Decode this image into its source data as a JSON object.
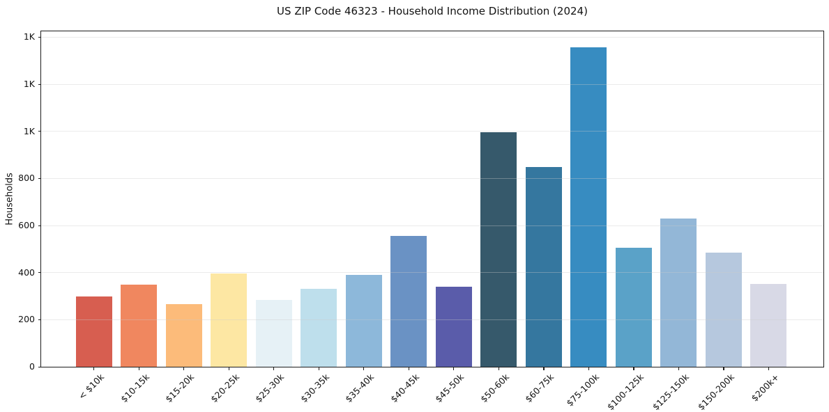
{
  "chart_data": {
    "type": "bar",
    "title": "US ZIP Code 46323 - Household Income Distribution (2024)",
    "xlabel": "",
    "ylabel": "Households",
    "categories": [
      "< $10k",
      "$10-15k",
      "$15-20k",
      "$20-25k",
      "$25-30k",
      "$30-35k",
      "$35-40k",
      "$40-45k",
      "$45-50k",
      "$50-60k",
      "$60-75k",
      "$75-100k",
      "$100-125k",
      "$125-150k",
      "$150-200k",
      "$200k+"
    ],
    "values": [
      300,
      350,
      267,
      395,
      284,
      332,
      390,
      555,
      340,
      997,
      848,
      1356,
      506,
      629,
      484,
      351
    ],
    "bar_colors": [
      "#d75e50",
      "#f0875f",
      "#fcbb7a",
      "#fde7a3",
      "#e6f1f6",
      "#bedfec",
      "#8db8da",
      "#6a92c4",
      "#5a5caa",
      "#36596b",
      "#35779f",
      "#378cc1",
      "#5aa2c8",
      "#93b7d7",
      "#b6c8de",
      "#d8d9e6"
    ],
    "y_tick_values": [
      0,
      200,
      400,
      600,
      800,
      1000,
      1200,
      1400
    ],
    "y_tick_labels": [
      "0",
      "200",
      "400",
      "600",
      "800",
      "1K",
      "1K",
      "1K"
    ],
    "ylim": [
      0,
      1425
    ],
    "grid": "horizontal",
    "grid_over_bars": true,
    "legend": "none",
    "colors": {
      "background": "#ffffff",
      "gridline": "#ececec",
      "spine": "#1c1c1c",
      "text": "#111111"
    }
  }
}
